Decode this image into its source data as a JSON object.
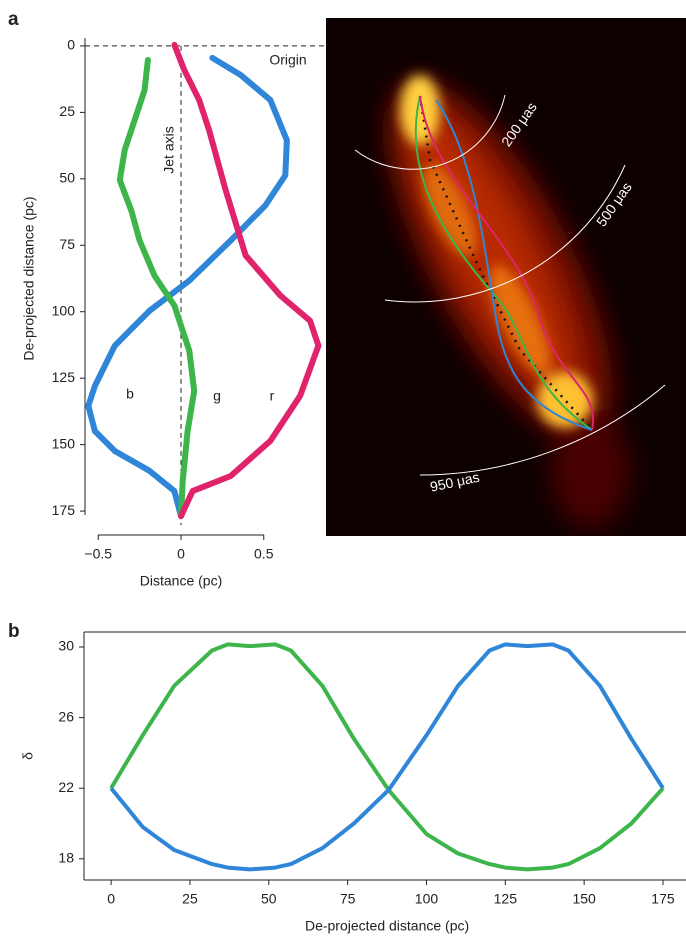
{
  "chart_data": [
    {
      "type": "thread",
      "label": "a",
      "xlabel": "Distance (pc)",
      "ylabel": "De-projected distance (pc)",
      "xlim": [
        -0.58,
        0.87
      ],
      "ylim": [
        -9,
        184
      ],
      "y_inverted": true,
      "xticks": [
        {
          "value": -0.5,
          "label": "−0.5"
        },
        0,
        0.5
      ],
      "yticks": [
        0,
        25,
        50,
        75,
        100,
        125,
        150,
        175
      ],
      "annotations": [
        "Origin",
        "Jet axis",
        "200 μas",
        "500 μas",
        "950 μas"
      ],
      "series": [
        {
          "name": "b",
          "color": "#2f86d8",
          "x": [
            0.19,
            0.36,
            0.54,
            0.64,
            0.63,
            0.51,
            0.3,
            0.05,
            -0.19,
            -0.4,
            -0.52,
            -0.56,
            -0.52,
            -0.4,
            -0.19,
            -0.04,
            0
          ],
          "values": [
            4.5,
            10.9,
            20.4,
            35.5,
            48.7,
            60,
            73.2,
            88.3,
            99.6,
            112.8,
            127.9,
            135.4,
            144.9,
            152.4,
            159.9,
            167.5,
            176.9
          ]
        },
        {
          "name": "g",
          "color": "#3db54a",
          "x": [
            -0.2,
            -0.22,
            -0.34,
            -0.37,
            -0.3,
            -0.25,
            -0.16,
            -0.04,
            0.05,
            0.08,
            0.04,
            0.01,
            0
          ],
          "values": [
            5.3,
            16.6,
            39.2,
            50.5,
            61.9,
            73.2,
            86.4,
            97.7,
            114.7,
            129.8,
            144.9,
            163.7,
            176.9
          ]
        },
        {
          "name": "r",
          "color": "#e0246c",
          "x": [
            -0.04,
            0.02,
            0.11,
            0.17,
            0.27,
            0.39,
            0.6,
            0.78,
            0.83,
            0.72,
            0.54,
            0.3,
            0.07,
            0
          ],
          "values": [
            -0.4,
            9.1,
            20.4,
            31.7,
            54.3,
            78.8,
            93.9,
            103.4,
            112.8,
            131.6,
            148.6,
            161.8,
            167.5,
            176.9
          ]
        }
      ]
    },
    {
      "type": "line",
      "label": "b",
      "xlabel": "De-projected distance (pc)",
      "ylabel": "δ",
      "xlim": [
        -8.6,
        182.3
      ],
      "ylim": [
        16.8,
        30.85
      ],
      "xticks": [
        0,
        25,
        50,
        75,
        100,
        125,
        150,
        175
      ],
      "yticks": [
        18,
        22,
        26,
        30
      ],
      "x": [
        0,
        10,
        20,
        32,
        37,
        44,
        52,
        57,
        67,
        77,
        88,
        100,
        110,
        120,
        125,
        132,
        140,
        145,
        155,
        165,
        175
      ],
      "series": [
        {
          "color": "#3db54a",
          "values": [
            22,
            25,
            27.8,
            29.8,
            30.15,
            30.05,
            30.15,
            29.8,
            27.8,
            24.8,
            21.9,
            19.4,
            18.3,
            17.7,
            17.5,
            17.4,
            17.5,
            17.7,
            18.6,
            20,
            22
          ]
        },
        {
          "color": "#2f86d8",
          "values": [
            22,
            19.8,
            18.5,
            17.7,
            17.5,
            17.4,
            17.5,
            17.7,
            18.6,
            20,
            21.9,
            25,
            27.8,
            29.8,
            30.15,
            30.05,
            30.15,
            29.8,
            27.8,
            24.8,
            22
          ]
        }
      ]
    }
  ]
}
